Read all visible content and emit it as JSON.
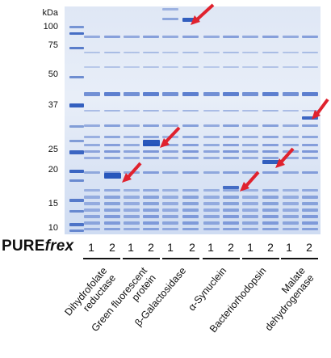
{
  "axis": {
    "unit": "kDa",
    "markers": [
      "100",
      "75",
      "50",
      "37",
      "25",
      "20",
      "15",
      "10"
    ]
  },
  "brand": {
    "prefix": "PURE",
    "suffix": "frex"
  },
  "proteins": [
    {
      "name": "Dihydrofolate reductase",
      "line1": "Dihydrofolate",
      "line2": "reductase",
      "lanes": [
        "1",
        "2"
      ]
    },
    {
      "name": "Green fluorescent protein",
      "line1": "Green fluorescent",
      "line2": "protein",
      "lanes": [
        "1",
        "2"
      ]
    },
    {
      "name": "β-Galactosidase",
      "line1": "β-Galactosidase",
      "line2": "",
      "lanes": [
        "1",
        "2"
      ]
    },
    {
      "name": "α-Synuclein",
      "line1": "α-Synuclein",
      "line2": "",
      "lanes": [
        "1",
        "2"
      ]
    },
    {
      "name": "Bacteriorhodopsin",
      "line1": "Bacteriorhodopsin",
      "line2": "",
      "lanes": [
        "1",
        "2"
      ]
    },
    {
      "name": "Malate dehydrogenase",
      "line1": "Malate",
      "line2": "dehydrogenase",
      "lanes": [
        "1",
        "2"
      ]
    }
  ],
  "colors": {
    "gel_background": "#dfe7f5",
    "band": "#3a63c4",
    "band_dark": "#1f4fb8",
    "arrow": "#e0222e"
  },
  "icons": [
    "arrow-icon"
  ]
}
